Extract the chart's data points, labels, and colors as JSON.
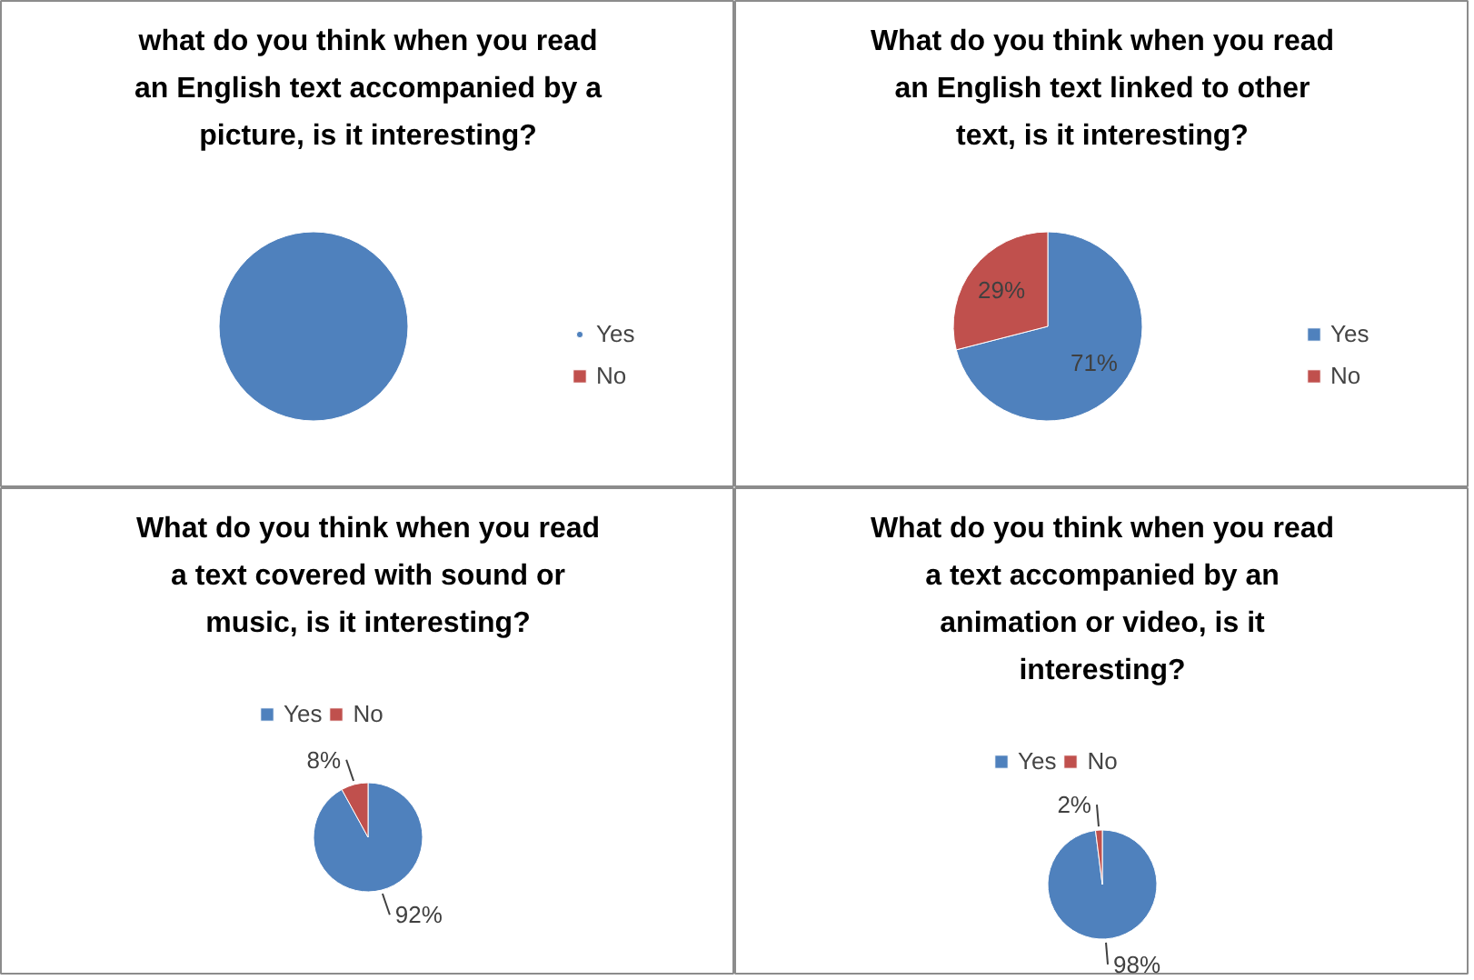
{
  "chart_data": [
    {
      "type": "pie",
      "title": "what do you think when you read an English text accompanied by a picture, is it interesting?",
      "categories": [
        "Yes",
        "No"
      ],
      "values": [
        100,
        0
      ],
      "colors": [
        "#4f81bd",
        "#c0504d"
      ],
      "legend": "right"
    },
    {
      "type": "pie",
      "title": "What do you think when you read an English text linked to other text, is it interesting?",
      "categories": [
        "Yes",
        "No"
      ],
      "values": [
        71,
        29
      ],
      "colors": [
        "#4f81bd",
        "#c0504d"
      ],
      "value_labels": [
        "71%",
        "29%"
      ],
      "legend": "right"
    },
    {
      "type": "pie",
      "title": "What do you think when you read a text covered with sound or music, is it interesting?",
      "categories": [
        "Yes",
        "No"
      ],
      "values": [
        92,
        8
      ],
      "colors": [
        "#4f81bd",
        "#c0504d"
      ],
      "value_labels": [
        "92%",
        "8%"
      ],
      "legend": "top"
    },
    {
      "type": "pie",
      "title": "What do you think when you read a text accompanied by an animation or video, is it interesting?",
      "categories": [
        "Yes",
        "No"
      ],
      "values": [
        98,
        2
      ],
      "colors": [
        "#4f81bd",
        "#c0504d"
      ],
      "value_labels": [
        "98%",
        "2%"
      ],
      "legend": "top"
    }
  ]
}
